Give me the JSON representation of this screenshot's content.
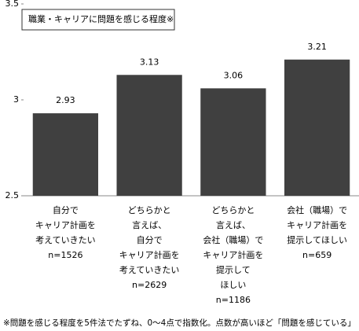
{
  "chart_data": {
    "type": "bar",
    "title": "職業・キャリアに問題を感じる程度※",
    "categories": [
      [
        "自分で",
        "キャリア計画を",
        "考えていきたい",
        "n=1526"
      ],
      [
        "どちらかと",
        "言えば、",
        "自分で",
        "キャリア計画を",
        "考えていきたい",
        "n=2629"
      ],
      [
        "どちらかと",
        "言えば、",
        "会社（職場）で",
        "キャリア計画を",
        "提示して",
        "ほしい",
        "n=1186"
      ],
      [
        "会社（職場）で",
        "キャリア計画を",
        "提示してほしい",
        "n=659"
      ]
    ],
    "values": [
      2.93,
      3.13,
      3.06,
      3.21
    ],
    "color": "#404040",
    "ylim": [
      2.5,
      3.5
    ],
    "yticks": [
      2.5,
      3,
      3.5
    ],
    "grid": false,
    "footnote": "※問題を感じる程度を5件法でたずね、0〜4点で指数化。点数が高いほど「問題を感じている」"
  }
}
